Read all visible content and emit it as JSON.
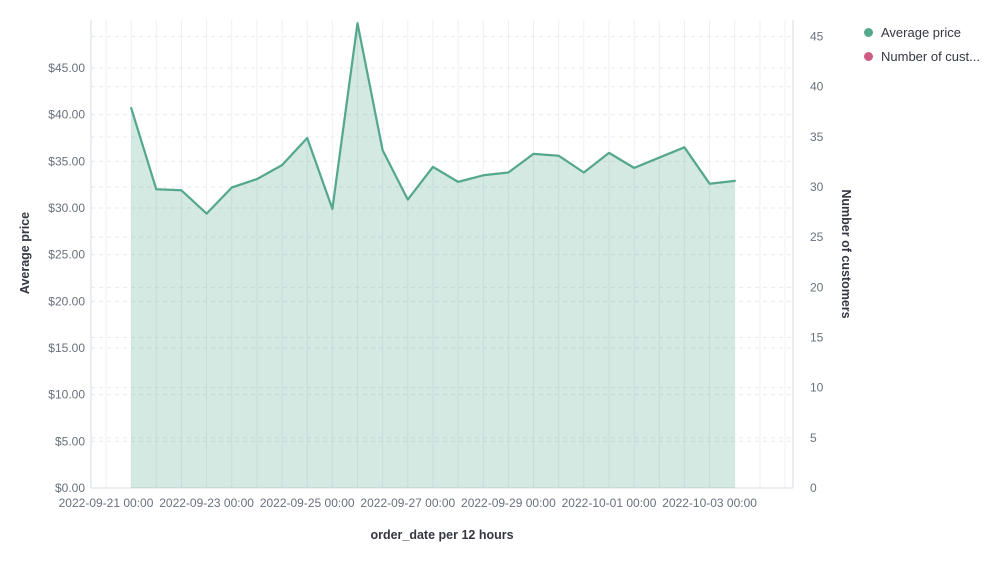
{
  "legend": {
    "items": [
      {
        "label": "Average price",
        "color": "#55a88d"
      },
      {
        "label": "Number of cust...",
        "color": "#cf5d81"
      }
    ]
  },
  "axes": {
    "left_title": "Average price",
    "right_title": "Number of customers",
    "x_title": "order_date per 12 hours"
  },
  "chart_data": {
    "type": "area",
    "title": "",
    "xlabel": "order_date per 12 hours",
    "ylabel_left": "Average price",
    "ylabel_right": "Number of customers",
    "grid": true,
    "legend_position": "top-right",
    "x_interval": "12 hours",
    "left_axis": {
      "tick_values": [
        0,
        5,
        10,
        15,
        20,
        25,
        30,
        35,
        40,
        45
      ],
      "tick_labels": [
        "$0.00",
        "$5.00",
        "$10.00",
        "$15.00",
        "$20.00",
        "$25.00",
        "$30.00",
        "$35.00",
        "$40.00",
        "$45.00"
      ],
      "range": [
        0,
        50
      ]
    },
    "right_axis": {
      "tick_values": [
        0,
        5,
        10,
        15,
        20,
        25,
        30,
        35,
        40,
        45
      ],
      "tick_labels": [
        "0",
        "5",
        "10",
        "15",
        "20",
        "25",
        "30",
        "35",
        "40",
        "45"
      ],
      "range": [
        0,
        46.7
      ]
    },
    "x_axis": {
      "tick_labels": [
        "2022-09-21 00:00",
        "2022-09-23 00:00",
        "2022-09-25 00:00",
        "2022-09-27 00:00",
        "2022-09-29 00:00",
        "2022-10-01 00:00",
        "2022-10-03 00:00"
      ],
      "tick_bins": [
        0,
        4,
        8,
        12,
        16,
        20,
        24
      ]
    },
    "series": [
      {
        "name": "Average price",
        "axis": "left",
        "color": "#55a88d",
        "fill": "rgba(84,169,140,0.25)",
        "x": [
          "2022-09-21 12:00",
          "2022-09-22 00:00",
          "2022-09-22 12:00",
          "2022-09-23 00:00",
          "2022-09-23 12:00",
          "2022-09-24 00:00",
          "2022-09-24 12:00",
          "2022-09-25 00:00",
          "2022-09-25 12:00",
          "2022-09-26 00:00",
          "2022-09-26 12:00",
          "2022-09-27 00:00",
          "2022-09-27 12:00",
          "2022-09-28 00:00",
          "2022-09-28 12:00",
          "2022-09-29 00:00",
          "2022-09-29 12:00",
          "2022-09-30 00:00",
          "2022-09-30 12:00",
          "2022-10-01 00:00",
          "2022-10-01 12:00",
          "2022-10-02 00:00",
          "2022-10-02 12:00",
          "2022-10-03 00:00",
          "2022-10-03 12:00"
        ],
        "values": [
          40.7,
          32.0,
          31.9,
          29.4,
          32.2,
          33.1,
          34.6,
          37.5,
          29.9,
          49.8,
          36.2,
          30.9,
          34.4,
          32.8,
          33.5,
          33.8,
          35.8,
          35.6,
          33.8,
          35.9,
          34.3,
          35.4,
          36.5,
          32.6,
          32.9
        ]
      },
      {
        "name": "Number of cust...",
        "axis": "right",
        "color": "#cf5d81",
        "values": []
      }
    ]
  }
}
